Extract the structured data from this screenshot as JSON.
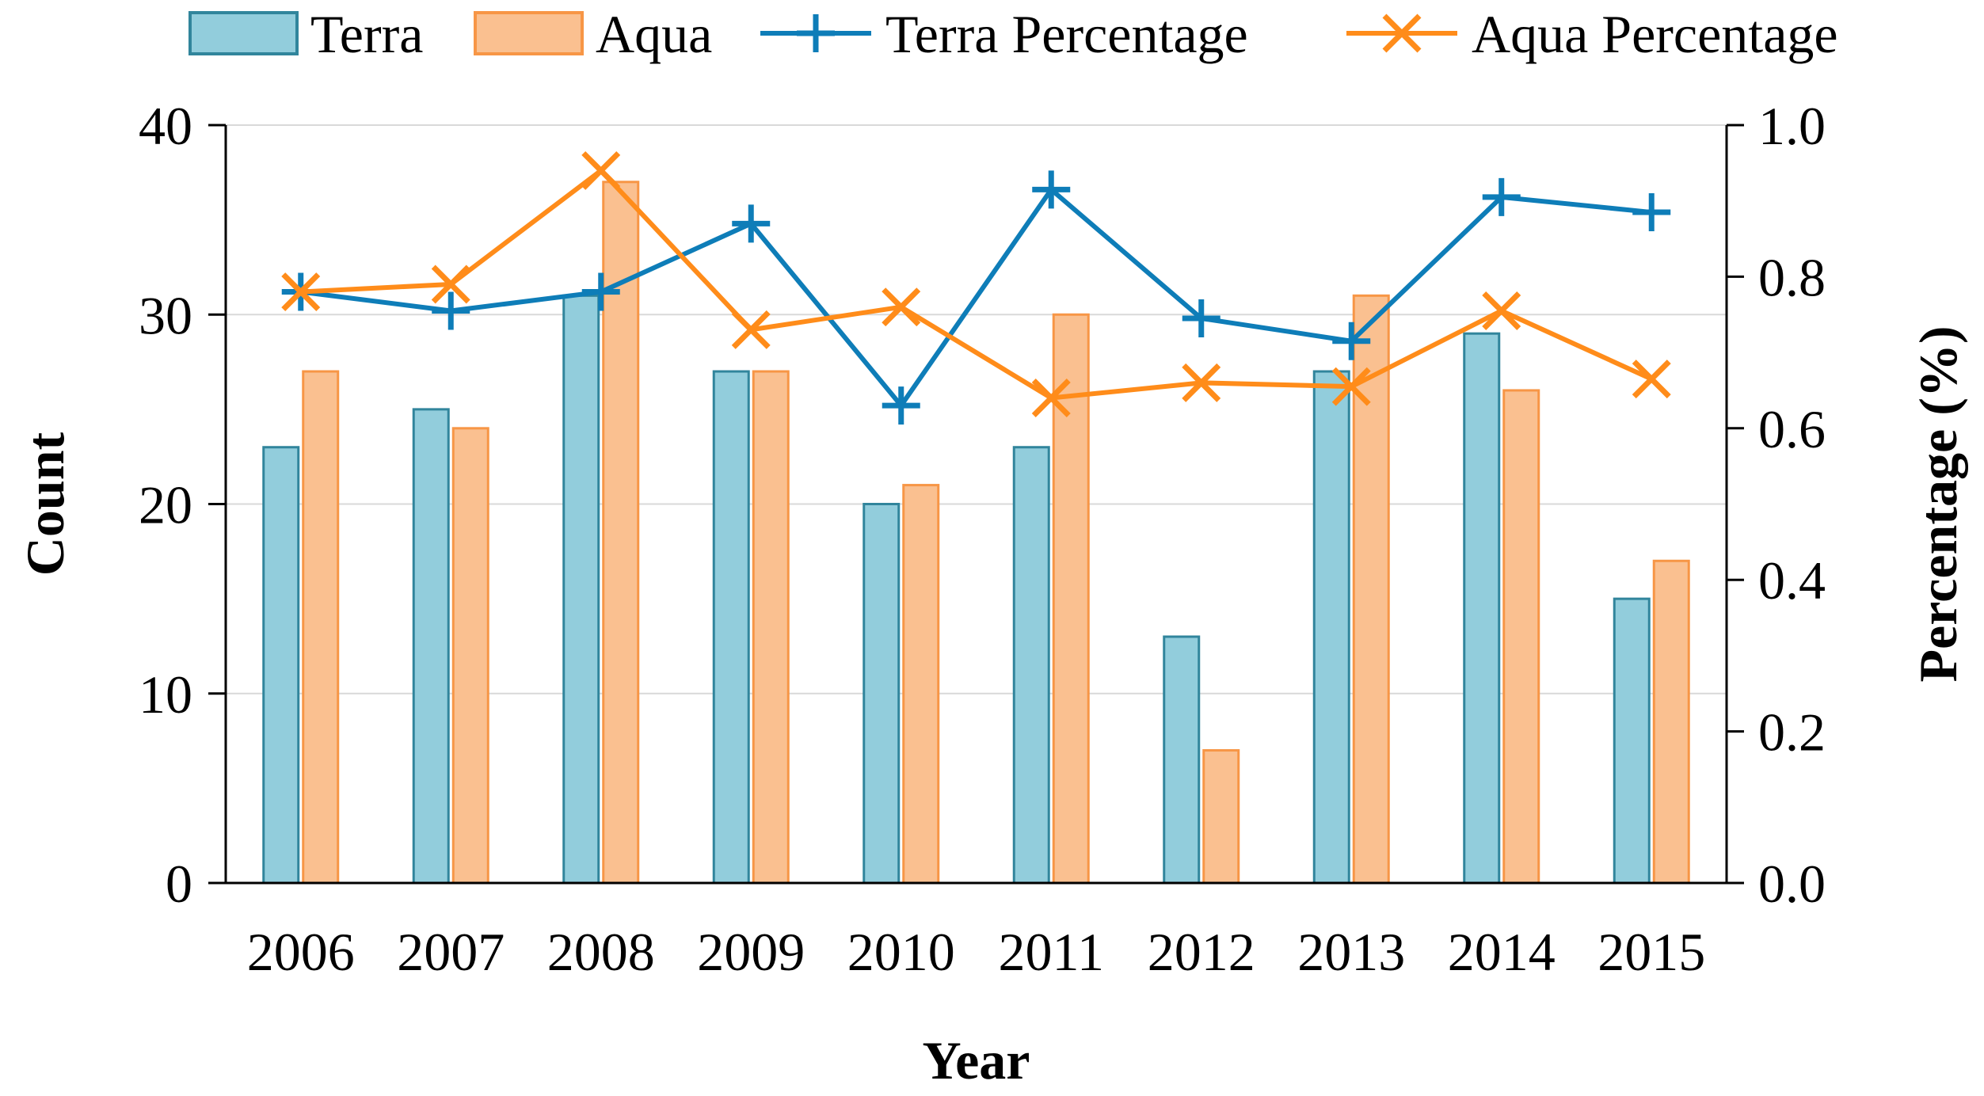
{
  "chart_data": {
    "type": "bar+line",
    "categories": [
      "2006",
      "2007",
      "2008",
      "2009",
      "2010",
      "2011",
      "2012",
      "2013",
      "2014",
      "2015"
    ],
    "bar_series": [
      {
        "name": "Terra",
        "values": [
          23,
          25,
          31,
          27,
          20,
          23,
          13,
          27,
          29,
          15
        ],
        "fill": "#92CDDC",
        "stroke": "#31859C"
      },
      {
        "name": "Aqua",
        "values": [
          27,
          24,
          37,
          27,
          21,
          30,
          7,
          31,
          26,
          17
        ],
        "fill": "#FAC090",
        "stroke": "#F79646"
      }
    ],
    "line_series": [
      {
        "name": "Terra Percentage",
        "values": [
          0.78,
          0.755,
          0.78,
          0.87,
          0.63,
          0.915,
          0.745,
          0.715,
          0.905,
          0.885
        ],
        "color": "#0E7DB8",
        "marker": "plus"
      },
      {
        "name": "Aqua Percentage",
        "values": [
          0.78,
          0.79,
          0.94,
          0.73,
          0.76,
          0.64,
          0.66,
          0.655,
          0.755,
          0.665
        ],
        "color": "#FF8C1A",
        "marker": "x"
      }
    ],
    "xlabel": "Year",
    "ylabel": "Count",
    "y2label": "Percentage (%)",
    "ylim": [
      0,
      40
    ],
    "y2lim": [
      0,
      1.0
    ],
    "yticks": [
      "0",
      "10",
      "20",
      "30",
      "40"
    ],
    "y2ticks": [
      "0.0",
      "0.2",
      "0.4",
      "0.6",
      "0.8",
      "1.0"
    ],
    "grid": true,
    "legend_position": "top"
  }
}
